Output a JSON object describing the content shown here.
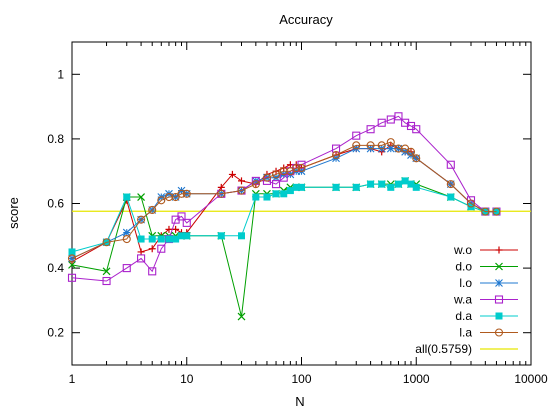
{
  "chart_data": {
    "type": "line",
    "title": "Accuracy",
    "xlabel": "N",
    "ylabel": "score",
    "x_scale": "log",
    "xlim": [
      1,
      10000
    ],
    "ylim": [
      0.1,
      1.1
    ],
    "x_ticks": [
      {
        "value": 1,
        "label": "1"
      },
      {
        "value": 10,
        "label": "10"
      },
      {
        "value": 100,
        "label": "100"
      },
      {
        "value": 1000,
        "label": "1000"
      },
      {
        "value": 10000,
        "label": "10000"
      }
    ],
    "y_ticks": [
      {
        "value": 0.2,
        "label": "0.2"
      },
      {
        "value": 0.4,
        "label": "0.4"
      },
      {
        "value": 0.6,
        "label": "0.6"
      },
      {
        "value": 0.8,
        "label": "0.8"
      },
      {
        "value": 1.0,
        "label": "1"
      }
    ],
    "grid": false,
    "legend_position": "bottom-right",
    "series": [
      {
        "name": "w.o",
        "color": "#cc0000",
        "marker": "plus",
        "points": [
          [
            1,
            0.42
          ],
          [
            2,
            0.48
          ],
          [
            3,
            0.61
          ],
          [
            4,
            0.45
          ],
          [
            5,
            0.46
          ],
          [
            6,
            0.5
          ],
          [
            7,
            0.52
          ],
          [
            8,
            0.52
          ],
          [
            9,
            0.51
          ],
          [
            10,
            0.51
          ],
          [
            20,
            0.65
          ],
          [
            25,
            0.69
          ],
          [
            30,
            0.67
          ],
          [
            40,
            0.66
          ],
          [
            50,
            0.69
          ],
          [
            60,
            0.7
          ],
          [
            70,
            0.71
          ],
          [
            80,
            0.72
          ],
          [
            90,
            0.72
          ],
          [
            100,
            0.71
          ],
          [
            200,
            0.75
          ],
          [
            300,
            0.77
          ],
          [
            400,
            0.77
          ],
          [
            500,
            0.76
          ],
          [
            600,
            0.78
          ],
          [
            700,
            0.77
          ],
          [
            800,
            0.76
          ],
          [
            900,
            0.76
          ],
          [
            1000,
            0.74
          ],
          [
            2000,
            0.66
          ],
          [
            3000,
            0.6
          ],
          [
            4000,
            0.575
          ],
          [
            5000,
            0.575
          ]
        ]
      },
      {
        "name": "d.o",
        "color": "#00a000",
        "marker": "x",
        "points": [
          [
            1,
            0.41
          ],
          [
            2,
            0.39
          ],
          [
            3,
            0.62
          ],
          [
            4,
            0.62
          ],
          [
            5,
            0.5
          ],
          [
            6,
            0.5
          ],
          [
            7,
            0.5
          ],
          [
            8,
            0.5
          ],
          [
            9,
            0.5
          ],
          [
            10,
            0.5
          ],
          [
            20,
            0.5
          ],
          [
            30,
            0.25
          ],
          [
            40,
            0.63
          ],
          [
            50,
            0.63
          ],
          [
            60,
            0.63
          ],
          [
            70,
            0.64
          ],
          [
            80,
            0.65
          ],
          [
            90,
            0.65
          ],
          [
            100,
            0.65
          ],
          [
            200,
            0.65
          ],
          [
            300,
            0.65
          ],
          [
            400,
            0.66
          ],
          [
            500,
            0.66
          ],
          [
            600,
            0.66
          ],
          [
            700,
            0.66
          ],
          [
            800,
            0.67
          ],
          [
            900,
            0.66
          ],
          [
            1000,
            0.66
          ],
          [
            2000,
            0.62
          ],
          [
            3000,
            0.59
          ],
          [
            4000,
            0.575
          ],
          [
            5000,
            0.575
          ]
        ]
      },
      {
        "name": "l.o",
        "color": "#1f78d0",
        "marker": "star",
        "points": [
          [
            1,
            0.43
          ],
          [
            2,
            0.48
          ],
          [
            3,
            0.51
          ],
          [
            4,
            0.55
          ],
          [
            5,
            0.58
          ],
          [
            6,
            0.62
          ],
          [
            7,
            0.63
          ],
          [
            8,
            0.62
          ],
          [
            9,
            0.64
          ],
          [
            10,
            0.63
          ],
          [
            20,
            0.63
          ],
          [
            30,
            0.64
          ],
          [
            40,
            0.67
          ],
          [
            50,
            0.68
          ],
          [
            60,
            0.68
          ],
          [
            70,
            0.69
          ],
          [
            80,
            0.69
          ],
          [
            90,
            0.7
          ],
          [
            100,
            0.7
          ],
          [
            200,
            0.74
          ],
          [
            300,
            0.77
          ],
          [
            400,
            0.77
          ],
          [
            500,
            0.77
          ],
          [
            600,
            0.77
          ],
          [
            700,
            0.77
          ],
          [
            800,
            0.76
          ],
          [
            900,
            0.75
          ],
          [
            1000,
            0.74
          ],
          [
            2000,
            0.66
          ],
          [
            3000,
            0.6
          ],
          [
            4000,
            0.575
          ],
          [
            5000,
            0.575
          ]
        ]
      },
      {
        "name": "w.a",
        "color": "#aa22cc",
        "marker": "square-open",
        "points": [
          [
            1,
            0.37
          ],
          [
            2,
            0.36
          ],
          [
            3,
            0.4
          ],
          [
            4,
            0.43
          ],
          [
            5,
            0.39
          ],
          [
            6,
            0.46
          ],
          [
            7,
            0.49
          ],
          [
            8,
            0.55
          ],
          [
            9,
            0.56
          ],
          [
            10,
            0.54
          ],
          [
            20,
            0.63
          ],
          [
            30,
            0.64
          ],
          [
            40,
            0.67
          ],
          [
            50,
            0.67
          ],
          [
            60,
            0.66
          ],
          [
            70,
            0.68
          ],
          [
            80,
            0.7
          ],
          [
            90,
            0.71
          ],
          [
            100,
            0.72
          ],
          [
            200,
            0.77
          ],
          [
            300,
            0.81
          ],
          [
            400,
            0.83
          ],
          [
            500,
            0.85
          ],
          [
            600,
            0.86
          ],
          [
            700,
            0.87
          ],
          [
            800,
            0.85
          ],
          [
            900,
            0.84
          ],
          [
            1000,
            0.83
          ],
          [
            2000,
            0.72
          ],
          [
            3000,
            0.61
          ],
          [
            4000,
            0.575
          ],
          [
            5000,
            0.575
          ]
        ]
      },
      {
        "name": "d.a",
        "color": "#00cccc",
        "marker": "square-filled",
        "points": [
          [
            1,
            0.45
          ],
          [
            2,
            0.48
          ],
          [
            3,
            0.62
          ],
          [
            4,
            0.49
          ],
          [
            5,
            0.49
          ],
          [
            6,
            0.49
          ],
          [
            7,
            0.49
          ],
          [
            8,
            0.49
          ],
          [
            9,
            0.5
          ],
          [
            10,
            0.5
          ],
          [
            20,
            0.5
          ],
          [
            30,
            0.5
          ],
          [
            40,
            0.62
          ],
          [
            50,
            0.62
          ],
          [
            60,
            0.63
          ],
          [
            70,
            0.63
          ],
          [
            80,
            0.64
          ],
          [
            90,
            0.65
          ],
          [
            100,
            0.65
          ],
          [
            200,
            0.65
          ],
          [
            300,
            0.65
          ],
          [
            400,
            0.66
          ],
          [
            500,
            0.66
          ],
          [
            600,
            0.65
          ],
          [
            700,
            0.66
          ],
          [
            800,
            0.67
          ],
          [
            900,
            0.66
          ],
          [
            1000,
            0.65
          ],
          [
            2000,
            0.62
          ],
          [
            3000,
            0.59
          ],
          [
            4000,
            0.575
          ],
          [
            5000,
            0.575
          ]
        ]
      },
      {
        "name": "l.a",
        "color": "#b05a1e",
        "marker": "circle-open",
        "points": [
          [
            1,
            0.43
          ],
          [
            2,
            0.48
          ],
          [
            3,
            0.49
          ],
          [
            4,
            0.55
          ],
          [
            5,
            0.58
          ],
          [
            6,
            0.61
          ],
          [
            7,
            0.62
          ],
          [
            8,
            0.62
          ],
          [
            9,
            0.63
          ],
          [
            10,
            0.63
          ],
          [
            20,
            0.63
          ],
          [
            30,
            0.64
          ],
          [
            40,
            0.66
          ],
          [
            50,
            0.68
          ],
          [
            60,
            0.69
          ],
          [
            70,
            0.7
          ],
          [
            80,
            0.7
          ],
          [
            90,
            0.71
          ],
          [
            100,
            0.71
          ],
          [
            200,
            0.75
          ],
          [
            300,
            0.78
          ],
          [
            400,
            0.78
          ],
          [
            500,
            0.78
          ],
          [
            600,
            0.79
          ],
          [
            700,
            0.77
          ],
          [
            800,
            0.77
          ],
          [
            900,
            0.76
          ],
          [
            1000,
            0.74
          ],
          [
            2000,
            0.66
          ],
          [
            3000,
            0.6
          ],
          [
            4000,
            0.575
          ],
          [
            5000,
            0.575
          ]
        ]
      }
    ],
    "reference_lines": [
      {
        "name": "all(0.5759)",
        "value": 0.5759,
        "color": "#e6e600"
      }
    ]
  }
}
